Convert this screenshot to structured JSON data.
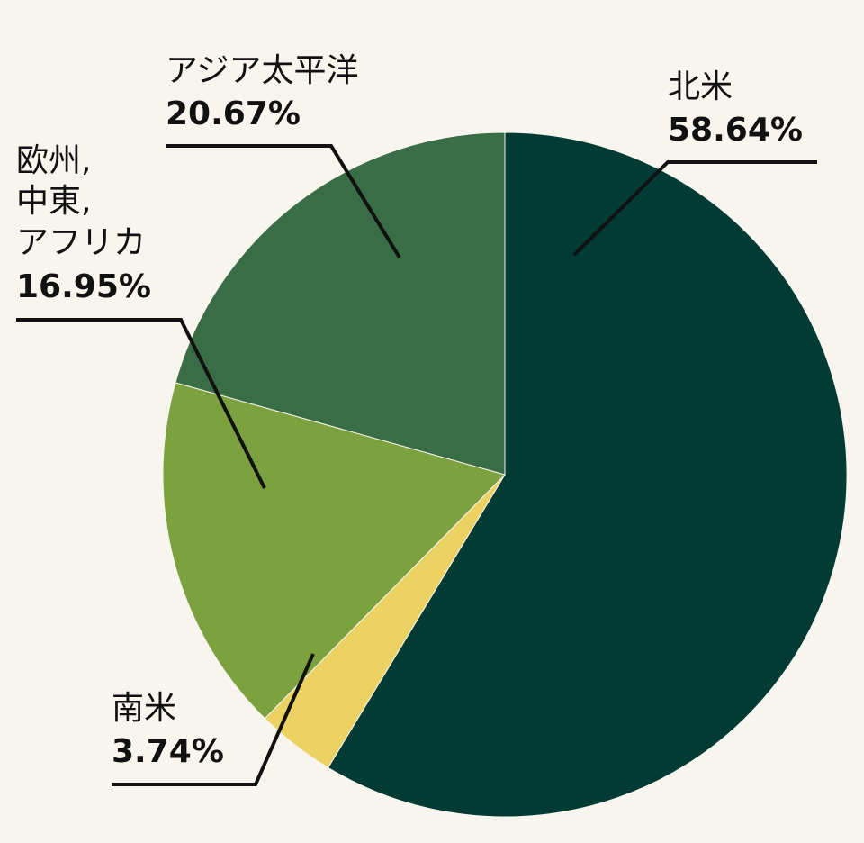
{
  "chart_data": {
    "type": "pie",
    "title": "",
    "categories": [
      "北米",
      "南米",
      "欧州, 中東, アフリカ",
      "アジア太平洋"
    ],
    "values": [
      58.64,
      3.74,
      16.95,
      20.67
    ],
    "value_unit": "%",
    "start": "12 o'clock",
    "direction": "clockwise",
    "legend": "none",
    "slices": [
      {
        "label_lines": [
          "北米"
        ],
        "value": 58.64,
        "value_label": "58.64%",
        "color": "#013b34"
      },
      {
        "label_lines": [
          "南米"
        ],
        "value": 3.74,
        "value_label": "3.74%",
        "color": "#ebd262"
      },
      {
        "label_lines": [
          "欧州,",
          "中東,",
          "アフリカ"
        ],
        "value": 16.95,
        "value_label": "16.95%",
        "color": "#7ba23e"
      },
      {
        "label_lines": [
          "アジア太平洋"
        ],
        "value": 20.67,
        "value_label": "20.67%",
        "color": "#396d45"
      }
    ]
  }
}
